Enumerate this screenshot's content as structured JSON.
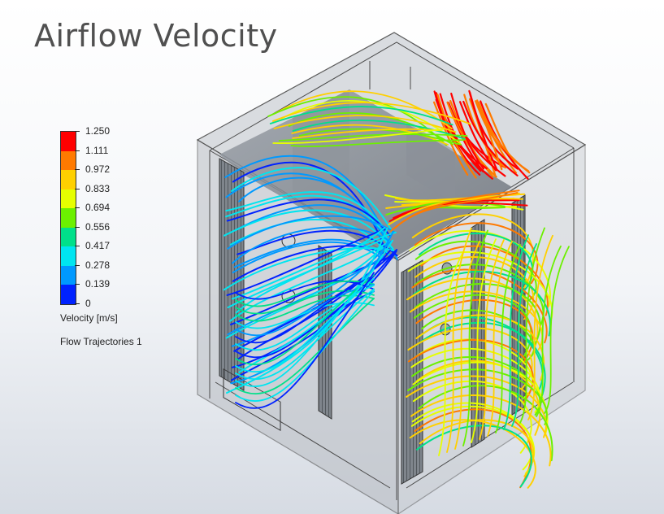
{
  "title": "Airflow Velocity",
  "legend": {
    "unit_label": "Velocity [m/s]",
    "caption": "Flow Trajectories 1",
    "max": 1.25,
    "min": 0,
    "ticks": [
      "1.250",
      "1.111",
      "0.972",
      "0.833",
      "0.694",
      "0.556",
      "0.417",
      "0.278",
      "0.139",
      "0"
    ],
    "bands": [
      "#ff0000",
      "#ff7a00",
      "#ffd000",
      "#e6ff00",
      "#6cf000",
      "#00e08a",
      "#00e5f0",
      "#0099ff",
      "#0022ff"
    ]
  }
}
